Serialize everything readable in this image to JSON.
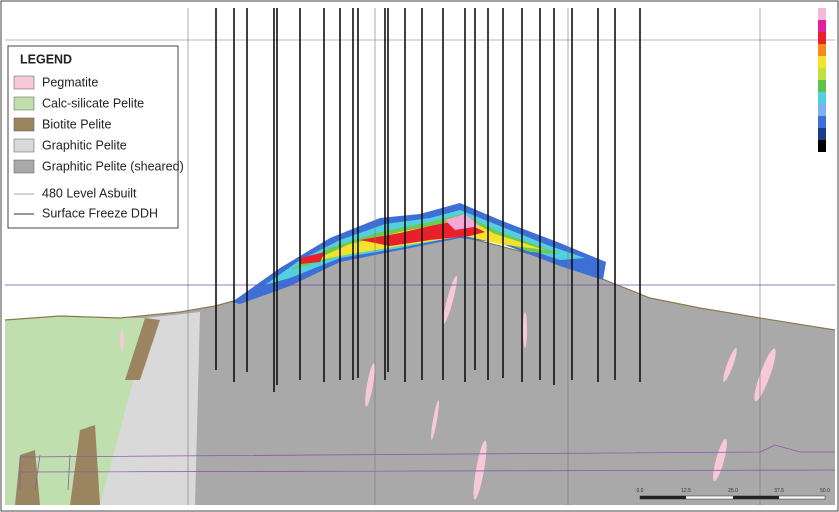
{
  "legend": {
    "title": "LEGEND",
    "items": [
      "Pegmatite",
      "Calc-silicate Pelite",
      "Biotite Pelite",
      "Graphitic Pelite",
      "Graphitic Pelite (sheared)",
      "480 Level Asbuilt",
      "Surface Freeze DDH"
    ]
  },
  "scale_bar": {
    "labels": [
      "0.0",
      "12.5",
      "25.0",
      "37.5",
      "50.0"
    ]
  }
}
